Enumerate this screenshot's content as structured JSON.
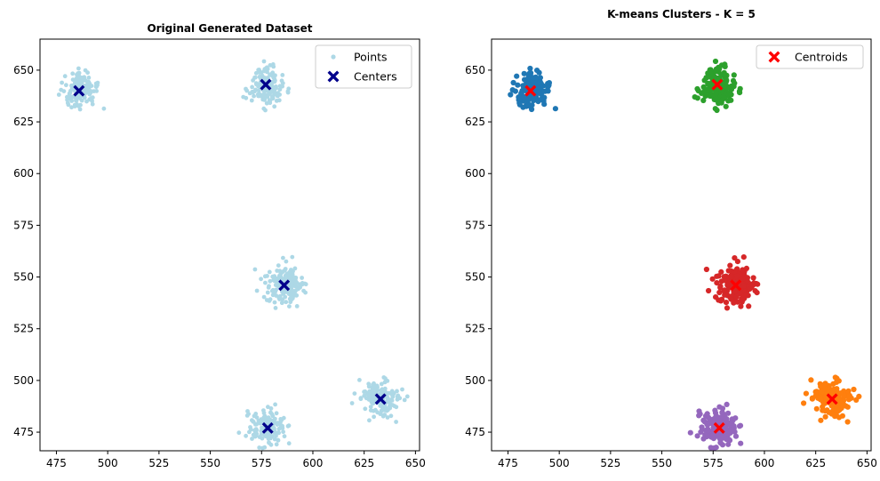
{
  "chart_data": [
    {
      "type": "scatter",
      "title": "Original Generated Dataset",
      "xlabel": "",
      "ylabel": "",
      "xlim": [
        467,
        652
      ],
      "ylim": [
        466,
        665
      ],
      "xticks": [
        475,
        500,
        525,
        550,
        575,
        600,
        625,
        650
      ],
      "yticks": [
        475,
        500,
        525,
        550,
        575,
        600,
        625,
        650
      ],
      "grid": false,
      "legend_position": "top-right",
      "series": [
        {
          "name": "Points",
          "color": "#add8e6",
          "marker": "circle",
          "clusters": [
            {
              "center": [
                486,
                640
              ],
              "spread": [
                4.2,
                4.5
              ],
              "count": 150
            },
            {
              "center": [
                577,
                642
              ],
              "spread": [
                4.2,
                4.5
              ],
              "count": 150
            },
            {
              "center": [
                586,
                546
              ],
              "spread": [
                4.6,
                4.5
              ],
              "count": 170
            },
            {
              "center": [
                633,
                491
              ],
              "spread": [
                4.6,
                4.5
              ],
              "count": 160
            },
            {
              "center": [
                578,
                477
              ],
              "spread": [
                4.4,
                4.4
              ],
              "count": 150
            }
          ]
        },
        {
          "name": "Centers",
          "color": "#00008b",
          "marker": "X",
          "points": [
            [
              486,
              640
            ],
            [
              577,
              643
            ],
            [
              586,
              546
            ],
            [
              633,
              491
            ],
            [
              578,
              477
            ]
          ]
        }
      ]
    },
    {
      "type": "scatter",
      "title": "K-means Clusters - K = 5",
      "xlabel": "",
      "ylabel": "",
      "xlim": [
        467,
        652
      ],
      "ylim": [
        466,
        665
      ],
      "xticks": [
        475,
        500,
        525,
        550,
        575,
        600,
        625,
        650
      ],
      "yticks": [
        475,
        500,
        525,
        550,
        575,
        600,
        625,
        650
      ],
      "grid": false,
      "legend_position": "top-right",
      "series": [
        {
          "color": "#1f77b4",
          "marker": "circle",
          "clusters": [
            {
              "center": [
                486,
                640
              ],
              "spread": [
                4.2,
                4.5
              ],
              "count": 150
            }
          ]
        },
        {
          "color": "#2ca02c",
          "marker": "circle",
          "clusters": [
            {
              "center": [
                577,
                642
              ],
              "spread": [
                4.2,
                4.5
              ],
              "count": 150
            }
          ]
        },
        {
          "color": "#d62728",
          "marker": "circle",
          "clusters": [
            {
              "center": [
                586,
                546
              ],
              "spread": [
                4.6,
                4.5
              ],
              "count": 170
            }
          ]
        },
        {
          "color": "#ff7f0e",
          "marker": "circle",
          "clusters": [
            {
              "center": [
                633,
                491
              ],
              "spread": [
                4.6,
                4.5
              ],
              "count": 160
            }
          ]
        },
        {
          "color": "#9467bd",
          "marker": "circle",
          "clusters": [
            {
              "center": [
                578,
                477
              ],
              "spread": [
                4.4,
                4.4
              ],
              "count": 150
            }
          ]
        },
        {
          "name": "Centroids",
          "color": "#ff0000",
          "marker": "X",
          "points": [
            [
              486,
              640
            ],
            [
              577,
              643
            ],
            [
              586,
              546
            ],
            [
              633,
              491
            ],
            [
              578,
              477
            ]
          ]
        }
      ]
    }
  ]
}
